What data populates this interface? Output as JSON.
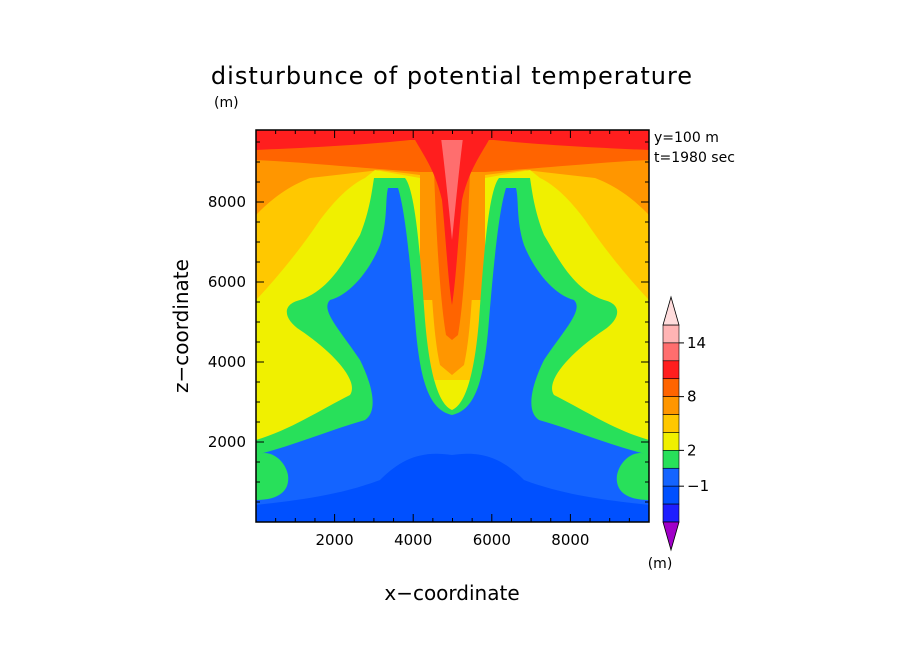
{
  "chart_data": {
    "type": "heatmap",
    "title": "disturbunce of potential temperature",
    "units_label": "(m)",
    "xlabel": "x−coordinate",
    "ylabel": "z−coordinate",
    "annotations": [
      "y=100 m",
      "t=1980 sec"
    ],
    "xlim": [
      0,
      10000
    ],
    "ylim": [
      0,
      9800
    ],
    "xticks": [
      2000,
      4000,
      6000,
      8000
    ],
    "yticks": [
      2000,
      4000,
      6000,
      8000
    ],
    "xtick_labels": [
      "2000",
      "4000",
      "6000",
      "8000"
    ],
    "ytick_labels": [
      "2000",
      "4000",
      "6000",
      "8000"
    ],
    "colorbar": {
      "labels": [
        {
          "text": "14",
          "level": 14
        },
        {
          "text": "8",
          "level": 8
        },
        {
          "text": "2",
          "level": 2
        },
        {
          "text": "−1",
          "level": -1
        }
      ],
      "units_label": "(m)",
      "levels": [
        -3,
        -2,
        -1,
        0,
        2,
        4,
        6,
        8,
        10,
        12,
        14,
        16
      ],
      "colors": [
        "#a000c8",
        "#1e1eff",
        "#0050ff",
        "#1464ff",
        "#28e05a",
        "#f0f000",
        "#ffc800",
        "#ff9600",
        "#ff6400",
        "#ff1e1e",
        "#ff6e6e",
        "#ffb4b4",
        "#ffdcdc"
      ]
    },
    "field_description_levels": {
      "bottom_core": -1,
      "side_columns": 2,
      "central_plume_top": 14,
      "upper_layer": 10
    }
  }
}
